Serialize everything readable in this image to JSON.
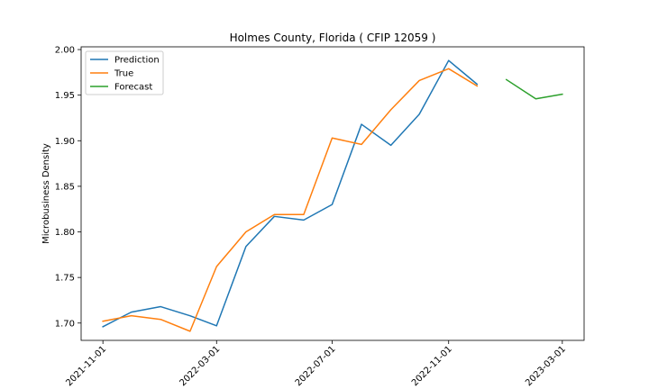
{
  "chart_data": {
    "type": "line",
    "title": "Holmes County, Florida ( CFIP 12059 )",
    "xlabel": "",
    "ylabel": "Microbusiness Density",
    "xlim": [
      "2021-10-09",
      "2023-03-24"
    ],
    "ylim": [
      1.681,
      2.003
    ],
    "x_ticks": [
      "2021-11-01",
      "2022-03-01",
      "2022-07-01",
      "2022-11-01",
      "2023-03-01"
    ],
    "y_ticks": [
      1.7,
      1.75,
      1.8,
      1.85,
      1.9,
      1.95,
      2.0
    ],
    "y_tick_labels": [
      "1.70",
      "1.75",
      "1.80",
      "1.85",
      "1.90",
      "1.95",
      "2.00"
    ],
    "grid": false,
    "legend_position": "upper left",
    "series": [
      {
        "name": "Prediction",
        "color": "#1f77b4",
        "points": [
          {
            "x": "2021-11-01",
            "y": 1.696
          },
          {
            "x": "2021-12-01",
            "y": 1.712
          },
          {
            "x": "2022-01-01",
            "y": 1.718
          },
          {
            "x": "2022-02-01",
            "y": 1.708
          },
          {
            "x": "2022-03-01",
            "y": 1.697
          },
          {
            "x": "2022-04-01",
            "y": 1.784
          },
          {
            "x": "2022-05-01",
            "y": 1.817
          },
          {
            "x": "2022-06-01",
            "y": 1.813
          },
          {
            "x": "2022-07-01",
            "y": 1.83
          },
          {
            "x": "2022-08-01",
            "y": 1.918
          },
          {
            "x": "2022-09-01",
            "y": 1.895
          },
          {
            "x": "2022-10-01",
            "y": 1.929
          },
          {
            "x": "2022-11-01",
            "y": 1.988
          },
          {
            "x": "2022-12-01",
            "y": 1.962
          }
        ]
      },
      {
        "name": "True",
        "color": "#ff7f0e",
        "points": [
          {
            "x": "2021-11-01",
            "y": 1.702
          },
          {
            "x": "2021-12-01",
            "y": 1.708
          },
          {
            "x": "2022-01-01",
            "y": 1.704
          },
          {
            "x": "2022-02-01",
            "y": 1.691
          },
          {
            "x": "2022-03-01",
            "y": 1.762
          },
          {
            "x": "2022-04-01",
            "y": 1.8
          },
          {
            "x": "2022-05-01",
            "y": 1.819
          },
          {
            "x": "2022-06-01",
            "y": 1.819
          },
          {
            "x": "2022-07-01",
            "y": 1.903
          },
          {
            "x": "2022-08-01",
            "y": 1.896
          },
          {
            "x": "2022-09-01",
            "y": 1.934
          },
          {
            "x": "2022-10-01",
            "y": 1.966
          },
          {
            "x": "2022-11-01",
            "y": 1.979
          },
          {
            "x": "2022-12-01",
            "y": 1.96
          }
        ]
      },
      {
        "name": "Forecast",
        "color": "#2ca02c",
        "points": [
          {
            "x": "2023-01-01",
            "y": 1.967
          },
          {
            "x": "2023-02-01",
            "y": 1.946
          },
          {
            "x": "2023-03-01",
            "y": 1.951
          }
        ]
      }
    ]
  }
}
